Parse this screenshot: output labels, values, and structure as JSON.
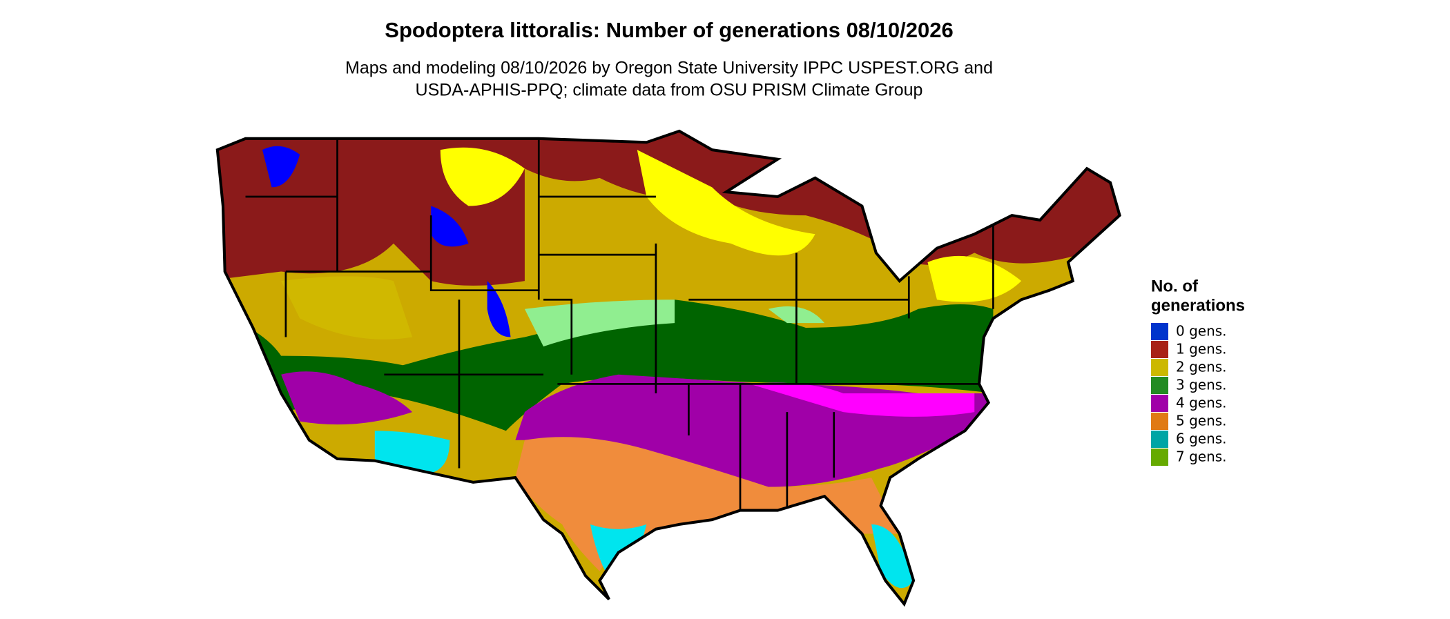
{
  "header": {
    "title": "Spodoptera littoralis: Number of generations 08/10/2026",
    "subtitle_lines": [
      "Maps and modeling 08/10/2026 by Oregon State University IPPC USPEST.ORG and",
      "USDA-APHIS-PPQ; climate data from OSU PRISM Climate Group"
    ]
  },
  "legend": {
    "title_lines": [
      "No. of",
      "generations"
    ],
    "items": [
      {
        "label": "0 gens.",
        "color": "#0033cc"
      },
      {
        "label": "1 gens.",
        "color": "#a82216"
      },
      {
        "label": "2 gens.",
        "color": "#ccb800"
      },
      {
        "label": "3 gens.",
        "color": "#228b22"
      },
      {
        "label": "4 gens.",
        "color": "#a000a8"
      },
      {
        "label": "5 gens.",
        "color": "#e07a14"
      },
      {
        "label": "6 gens.",
        "color": "#00a5a5"
      },
      {
        "label": "7 gens.",
        "color": "#66aa00"
      }
    ]
  }
}
